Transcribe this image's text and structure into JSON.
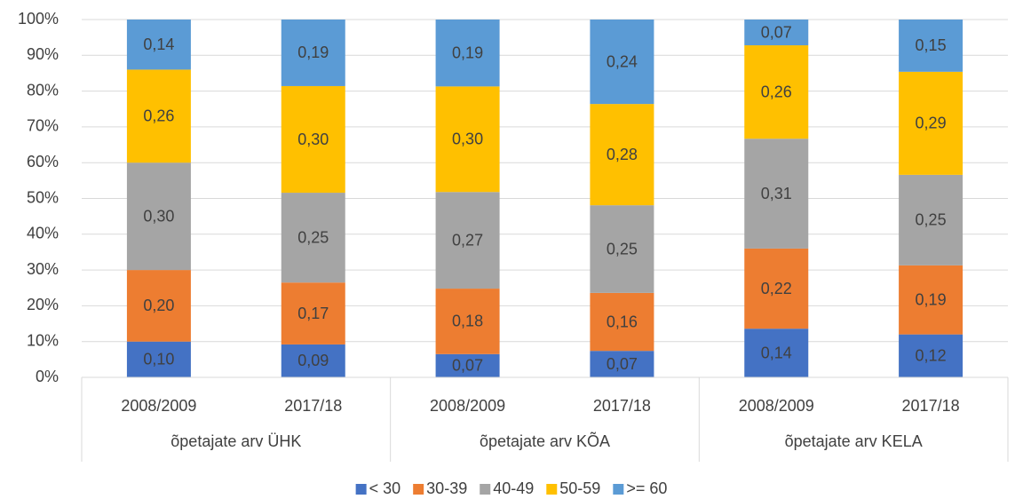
{
  "chart_data": {
    "type": "stacked_bar_100",
    "categories": [
      "2008/2009",
      "2017/18",
      "2008/2009",
      "2017/18",
      "2008/2009",
      "2017/18"
    ],
    "groups": [
      "õpetajate arv ÜHK",
      "õpetajate arv KÕA",
      "õpetajate arv KELA"
    ],
    "series": [
      {
        "name": "< 30",
        "color": "#4472c4",
        "values": [
          10,
          9.2,
          6.5,
          7.4,
          13.6,
          12
        ],
        "value_labels": [
          "0,10",
          "0,09",
          "0,07",
          "0,07",
          "0,14",
          "0,12"
        ]
      },
      {
        "name": "30-39",
        "color": "#ed7d31",
        "values": [
          20,
          17.3,
          18.3,
          16.2,
          22.4,
          19.3
        ],
        "value_labels": [
          "0,20",
          "0,17",
          "0,18",
          "0,16",
          "0,22",
          "0,19"
        ]
      },
      {
        "name": "40-49",
        "color": "#a5a5a5",
        "values": [
          30,
          25.1,
          27,
          24.5,
          30.7,
          25.3
        ],
        "value_labels": [
          "0,30",
          "0,25",
          "0,27",
          "0,25",
          "0,31",
          "0,25"
        ]
      },
      {
        "name": "50-59",
        "color": "#ffc000",
        "values": [
          26,
          29.8,
          29.5,
          28.3,
          26.1,
          28.8
        ],
        "value_labels": [
          "0,26",
          "0,30",
          "0,30",
          "0,28",
          "0,26",
          "0,29"
        ]
      },
      {
        "name": ">= 60",
        "color": "#5b9bd5",
        "values": [
          14,
          18.6,
          18.7,
          23.6,
          7.2,
          14.6
        ],
        "value_labels": [
          "0,14",
          "0,19",
          "0,19",
          "0,24",
          "0,07",
          "0,15"
        ]
      }
    ],
    "ylim": [
      0,
      100
    ],
    "yticks": [
      {
        "value": 0,
        "label": "0%"
      },
      {
        "value": 10,
        "label": "10%"
      },
      {
        "value": 20,
        "label": "20%"
      },
      {
        "value": 30,
        "label": "30%"
      },
      {
        "value": 40,
        "label": "40%"
      },
      {
        "value": 50,
        "label": "50%"
      },
      {
        "value": 60,
        "label": "60%"
      },
      {
        "value": 70,
        "label": "70%"
      },
      {
        "value": 80,
        "label": "80%"
      },
      {
        "value": 90,
        "label": "90%"
      },
      {
        "value": 100,
        "label": "100%"
      }
    ],
    "grid": true,
    "legend": "bottom"
  }
}
